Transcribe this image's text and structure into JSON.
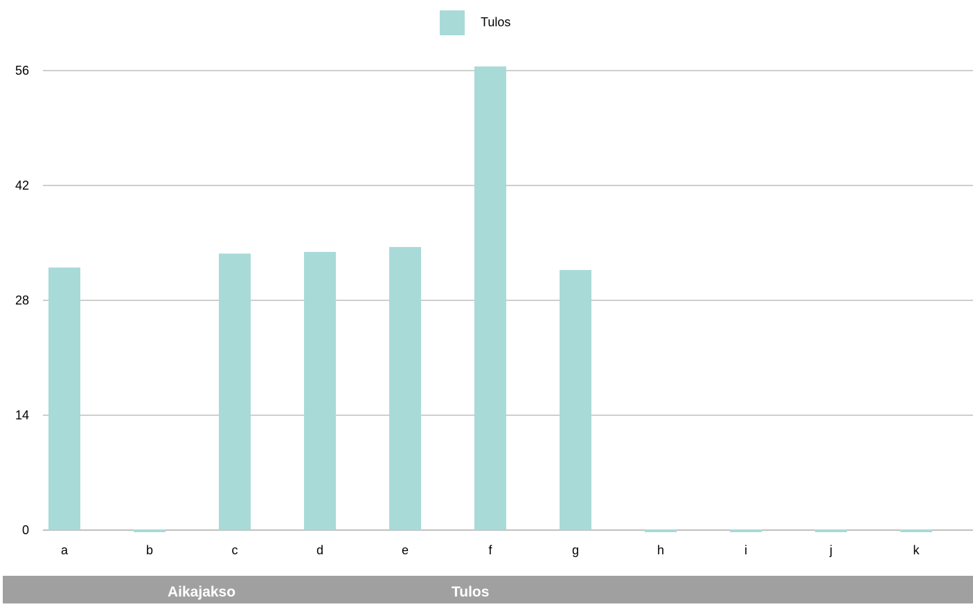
{
  "chart_data": {
    "type": "bar",
    "categories": [
      "a",
      "b",
      "c",
      "d",
      "e",
      "f",
      "g",
      "h",
      "i",
      "j",
      "k"
    ],
    "series": [
      {
        "name": "Tulos",
        "color": "#a8dad8",
        "values": [
          32,
          0,
          33.7,
          33.9,
          34.5,
          56.5,
          31.7,
          0,
          0,
          0,
          0
        ]
      }
    ],
    "legend": "top-center",
    "ylim": [
      0,
      56
    ],
    "yticks": [
      0,
      14,
      28,
      42,
      56
    ],
    "grid": true
  },
  "table": {
    "headers": [
      "Aikajakso",
      "Tulos"
    ]
  }
}
